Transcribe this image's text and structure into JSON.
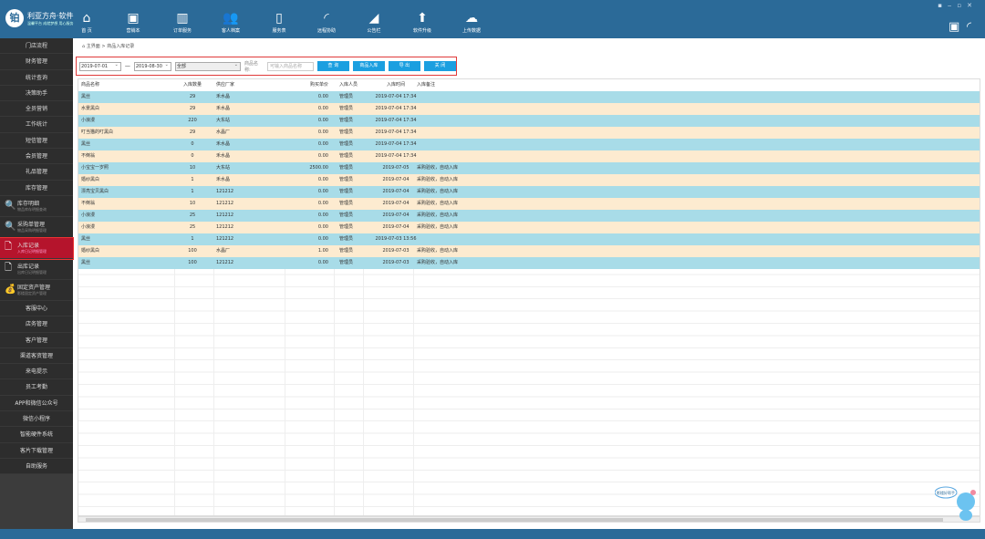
{
  "app": {
    "logo_text": "利亚方舟·软件",
    "logo_sub": "温馨平台 成就梦想 用心服务",
    "logo_char": "铂"
  },
  "nav": [
    {
      "label": "首 页",
      "icon": "home-icon",
      "glyph": "⌂"
    },
    {
      "label": "营销本",
      "icon": "notebook-icon",
      "glyph": "▣"
    },
    {
      "label": "订单服务",
      "icon": "bar-chart-icon",
      "glyph": "▥"
    },
    {
      "label": "客人档案",
      "icon": "users-icon",
      "glyph": "👥"
    },
    {
      "label": "服务表",
      "icon": "phone-icon",
      "glyph": "▯"
    },
    {
      "label": "远程协助",
      "icon": "wifi-icon",
      "glyph": "◜"
    },
    {
      "label": "公告栏",
      "icon": "megaphone-icon",
      "glyph": "◢"
    },
    {
      "label": "软件升级",
      "icon": "upgrade-icon",
      "glyph": "⬆"
    },
    {
      "label": "上传数据",
      "icon": "cloud-upload-icon",
      "glyph": "☁"
    }
  ],
  "sidebar": {
    "items": [
      "门店流程",
      "财务管理",
      "统计查询",
      "决策助手",
      "全员营销",
      "工作统计",
      "短信管理",
      "会员管理",
      "礼品管理",
      "库存管理"
    ],
    "icon_items": [
      {
        "label": "库存明细",
        "sub": "物品库存明细查询",
        "icon": "search-icon",
        "glyph": "🔍"
      },
      {
        "label": "采购单管理",
        "sub": "物品采购明细管理",
        "icon": "search-icon",
        "glyph": "🔍"
      },
      {
        "label": "入库记录",
        "sub": "入库日记明细管理",
        "icon": "document-icon",
        "glyph": "🗋"
      },
      {
        "label": "出库记录",
        "sub": "出库日记明细管理",
        "icon": "document-icon",
        "glyph": "🗋"
      },
      {
        "label": "固定资产管理",
        "sub": "影楼固定资产管理",
        "icon": "money-bag-icon",
        "glyph": "💰"
      }
    ],
    "items2": [
      "客服中心",
      "店务管理",
      "客户管理",
      "渠道客资管理",
      "来电提示",
      "员工考勤",
      "APP和微信公众号",
      "微信小程序",
      "智能硬件系统",
      "客片下载管理",
      "自助服务"
    ]
  },
  "breadcrumb": {
    "home": "主界面",
    "sep": ">",
    "current": "商品入库记录"
  },
  "toolbar": {
    "date_from": "2019-07-01",
    "date_sep": "—",
    "date_to": "2019-08-30",
    "category": "全部",
    "name_label": "商品名称:",
    "name_placeholder": "可输入商品名称",
    "query": "查 询",
    "stock_in": "商品入库",
    "export": "导 出",
    "close": "关 闭"
  },
  "table": {
    "headers": [
      "商品名称",
      "入库数量",
      "供应厂家",
      "购买单价",
      "入库人员",
      "入库时间",
      "入库备注"
    ],
    "rows": [
      [
        "黑丝",
        "29",
        "禾水晶",
        "0.00",
        "管理员",
        "2019-07-04 17:34",
        ""
      ],
      [
        "水景黑白",
        "29",
        "禾水晶",
        "0.00",
        "管理员",
        "2019-07-04 17:34",
        ""
      ],
      [
        "小浪漫",
        "220",
        "大东站",
        "0.00",
        "管理员",
        "2019-07-04 17:34",
        ""
      ],
      [
        "叮当猫的叮黑白",
        "29",
        "水晶厂",
        "0.00",
        "管理员",
        "2019-07-04 17:34",
        ""
      ],
      [
        "黑丝",
        "0",
        "禾水晶",
        "0.00",
        "管理员",
        "2019-07-04 17:34",
        ""
      ],
      [
        "不倒翁",
        "0",
        "禾水晶",
        "0.00",
        "管理员",
        "2019-07-04 17:34",
        ""
      ],
      [
        "小宝宝一岁照",
        "10",
        "大东站",
        "2500.00",
        "管理员",
        "2019-07-05",
        "采购验收，自动入库"
      ],
      [
        "婚纱黑白",
        "1",
        "禾水晶",
        "0.00",
        "管理员",
        "2019-07-04",
        "采购验收，自动入库"
      ],
      [
        "漂亮宝贝黑白",
        "1",
        "121212",
        "0.00",
        "管理员",
        "2019-07-04",
        "采购验收，自动入库"
      ],
      [
        "不倒翁",
        "10",
        "121212",
        "0.00",
        "管理员",
        "2019-07-04",
        "采购验收，自动入库"
      ],
      [
        "小浪漫",
        "25",
        "121212",
        "0.00",
        "管理员",
        "2019-07-04",
        "采购验收，自动入库"
      ],
      [
        "小浪漫",
        "25",
        "121212",
        "0.00",
        "管理员",
        "2019-07-04",
        "采购验收，自动入库"
      ],
      [
        "黑丝",
        "1",
        "121212",
        "0.00",
        "管理员",
        "2019-07-03 13:56",
        ""
      ],
      [
        "婚纱黑白",
        "100",
        "水晶厂",
        "1.00",
        "管理员",
        "2019-07-03",
        "采购验收，自动入库"
      ],
      [
        "黑丝",
        "100",
        "121212",
        "0.00",
        "管理员",
        "2019-07-03",
        "采购验收，自动入库"
      ]
    ]
  },
  "mascot": {
    "bubble": "影楼好帮手"
  },
  "colors": {
    "topbar": "#2b6a98",
    "row_blue": "#a8dce8",
    "row_cream": "#fdebd0",
    "active": "#b5142c",
    "button": "#1b9fe0"
  }
}
